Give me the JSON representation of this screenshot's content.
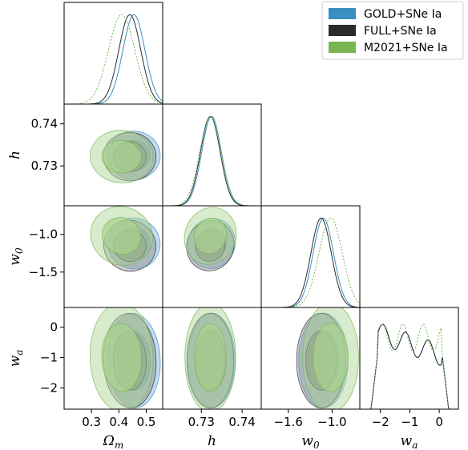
{
  "chart_data": {
    "type": "corner",
    "parameters": [
      {
        "name": "Omega_m",
        "label_base": "Ω",
        "label_sub": "m",
        "range": [
          0.2,
          0.56
        ],
        "ticks": [
          0.3,
          0.4,
          0.5
        ],
        "tick_labels": [
          "0.3",
          "0.4",
          "0.5"
        ]
      },
      {
        "name": "h",
        "label_base": "h",
        "label_sub": "",
        "range": [
          0.7205,
          0.7447
        ],
        "ticks": [
          0.73,
          0.74
        ],
        "tick_labels": [
          "0.73",
          "0.74"
        ]
      },
      {
        "name": "w0",
        "label_base": "w",
        "label_sub": "0",
        "range": [
          -1.97,
          -0.62
        ],
        "ticks": [
          -1.6,
          -1.0
        ],
        "tick_labels": [
          "−1.6",
          "−1.0"
        ],
        "y_ticks": [
          -1.0,
          -1.5
        ],
        "y_tick_labels": [
          "−1.0",
          "−1.5"
        ]
      },
      {
        "name": "wa",
        "label_base": "w",
        "label_sub": "a",
        "range": [
          -2.7,
          0.65
        ],
        "ticks": [
          -2,
          -1,
          0
        ],
        "tick_labels": [
          "−2",
          "−1",
          "0"
        ],
        "y_ticks": [
          0,
          -1,
          -2
        ],
        "y_tick_labels": [
          "0",
          "−1",
          "−2"
        ]
      }
    ],
    "series": [
      {
        "name": "GOLD+SNe Ia",
        "color": "#3a8ec2",
        "fill": "#79b0d8",
        "line": "solid",
        "mean": {
          "Omega_m": 0.455,
          "h": 0.7325,
          "w0": -1.12,
          "wa": -1.1
        },
        "sd": {
          "Omega_m": 0.04,
          "h": 0.0024,
          "w0": 0.14,
          "wa": 0.65
        }
      },
      {
        "name": "FULL+SNe Ia",
        "color": "#2b2b2b",
        "fill": "#8c8c8c",
        "line": "solid",
        "mean": {
          "Omega_m": 0.44,
          "h": 0.7322,
          "w0": -1.15,
          "wa": -1.1
        },
        "sd": {
          "Omega_m": 0.04,
          "h": 0.0024,
          "w0": 0.14,
          "wa": 0.65
        }
      },
      {
        "name": "M2021+SNe Ia",
        "color": "#76b550",
        "fill": "#a9d38e",
        "line": "dotted",
        "mean": {
          "Omega_m": 0.41,
          "h": 0.7322,
          "w0": -1.02,
          "wa": -1.0
        },
        "sd": {
          "Omega_m": 0.048,
          "h": 0.0026,
          "w0": 0.16,
          "wa": 0.75
        }
      }
    ],
    "legend": {
      "placement": "top-right"
    }
  }
}
